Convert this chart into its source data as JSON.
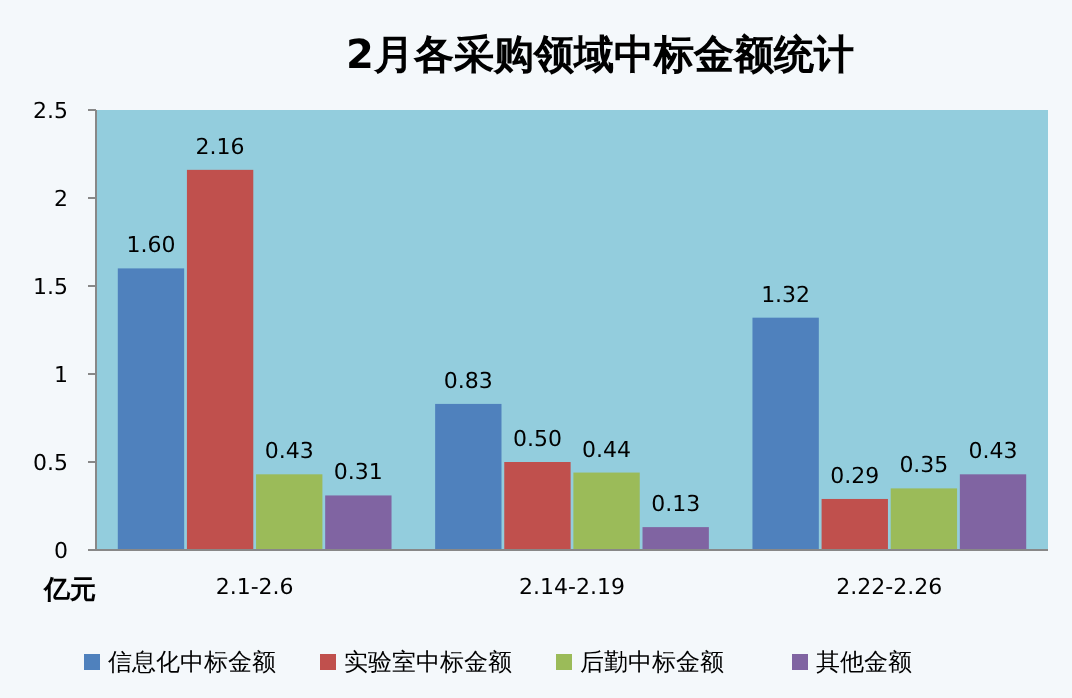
{
  "chart_data": {
    "type": "bar",
    "title": "2月各采购领域中标金额统计",
    "ylabel": "亿元",
    "categories": [
      "2.1-2.6",
      "2.14-2.19",
      "2.22-2.26"
    ],
    "series": [
      {
        "name": "信息化中标金额",
        "color": "#4f81bd",
        "values": [
          1.6,
          0.83,
          1.32
        ],
        "value_labels": [
          "1.60",
          "0.83",
          "1.32"
        ]
      },
      {
        "name": "实验室中标金额",
        "color": "#c0504d",
        "values": [
          2.16,
          0.5,
          0.29
        ],
        "value_labels": [
          "2.16",
          "0.50",
          "0.29"
        ]
      },
      {
        "name": "后勤中标金额",
        "color": "#9bbb59",
        "values": [
          0.43,
          0.44,
          0.35
        ],
        "value_labels": [
          "0.43",
          "0.44",
          "0.35"
        ]
      },
      {
        "name": "其他金额",
        "color": "#8064a2",
        "values": [
          0.31,
          0.13,
          0.43
        ],
        "value_labels": [
          "0.31",
          "0.13",
          "0.43"
        ]
      }
    ],
    "ylim": [
      0,
      2.5
    ],
    "yticks": [
      0,
      0.5,
      1,
      1.5,
      2,
      2.5
    ],
    "grid": false,
    "legend": "bottom"
  }
}
